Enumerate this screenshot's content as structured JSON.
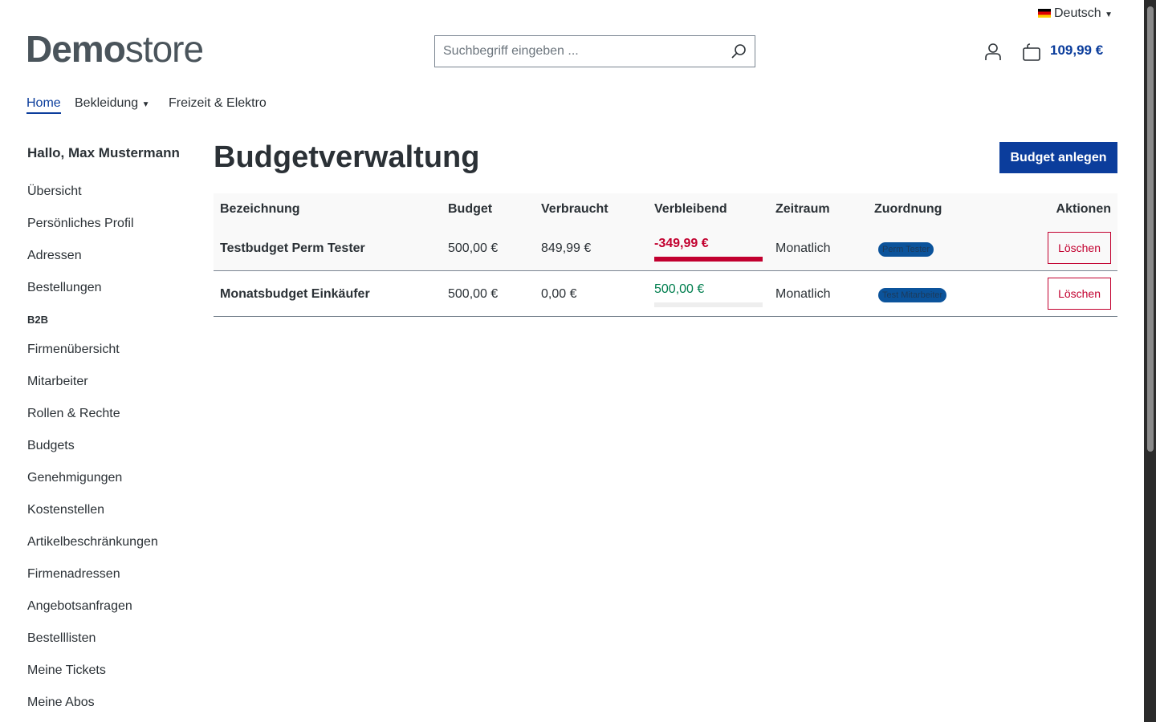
{
  "language": "Deutsch",
  "logo": {
    "bold": "Demo",
    "light": "store"
  },
  "search": {
    "placeholder": "Suchbegriff eingeben ..."
  },
  "cart_total": "109,99 €",
  "nav": [
    "Home",
    "Bekleidung",
    "Freizeit & Elektro"
  ],
  "sidebar": {
    "greeting": "Hallo, Max Mustermann",
    "items": [
      "Übersicht",
      "Persönliches Profil",
      "Adressen",
      "Bestellungen"
    ],
    "section": "B2B",
    "b2b_items": [
      "Firmenübersicht",
      "Mitarbeiter",
      "Rollen & Rechte",
      "Budgets",
      "Genehmigungen",
      "Kostenstellen",
      "Artikelbeschränkungen",
      "Firmenadressen",
      "Angebotsanfragen",
      "Bestelllisten",
      "Meine Tickets",
      "Meine Abos"
    ]
  },
  "page": {
    "title": "Budgetverwaltung",
    "create_button": "Budget anlegen"
  },
  "table": {
    "headers": [
      "Bezeichnung",
      "Budget",
      "Verbraucht",
      "Verbleibend",
      "Zeitraum",
      "Zuordnung",
      "Aktionen"
    ],
    "rows": [
      [
        "Testbudget Perm Tester",
        "500,00 €",
        "849,99 €",
        "-349,99 €",
        "Monatlich",
        "Perm Tester",
        "Löschen"
      ],
      [
        "Monatsbudget Einkäufer",
        "500,00 €",
        "0,00 €",
        "500,00 €",
        "Monatlich",
        "Test Mitarbeiter",
        "Löschen"
      ]
    ]
  }
}
